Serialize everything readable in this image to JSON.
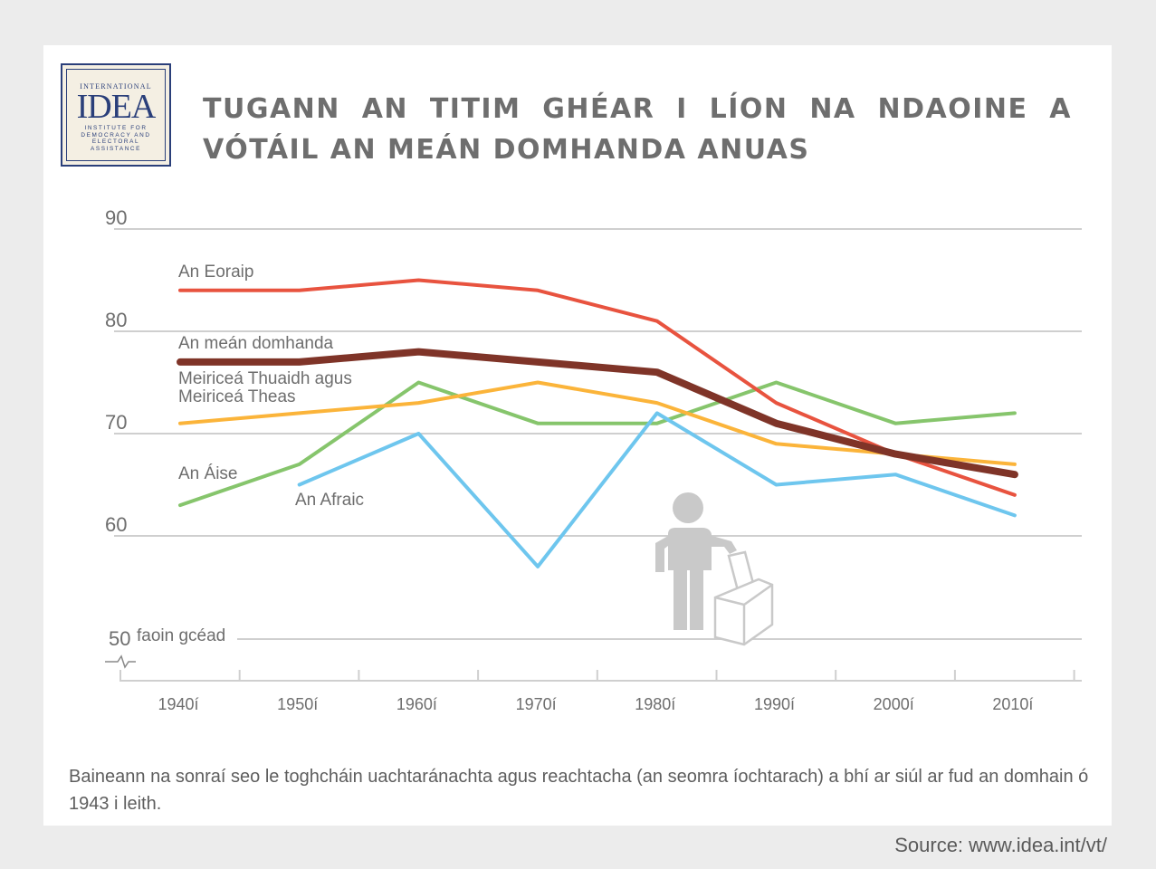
{
  "logo": {
    "top": "INTERNATIONAL",
    "main": "IDEA",
    "sub_lines": [
      "INSTITUTE FOR",
      "DEMOCRACY AND",
      "ELECTORAL",
      "ASSISTANCE"
    ]
  },
  "title": "TUGANN AN TITIM GHÉAR I LÍON NA NDAOINE A VÓTÁIL AN MEÁN DOMHANDA ANUAS",
  "note": "Baineann na sonraí seo le toghcháin uachtaránachta agus reachtacha (an seomra íochtarach) a bhí ar siúl ar fud an domhain ó 1943 i leith.",
  "source": "Source: www.idea.int/vt/",
  "colors": {
    "europe": "#e8533f",
    "world": "#7f3428",
    "americas": "#fbb43a",
    "asia": "#86c56c",
    "africa": "#6ec6ee",
    "grid": "#cfcfcf",
    "text": "#6e6e6e"
  },
  "icon": "voter-ballot-box-icon",
  "chart_data": {
    "type": "line",
    "categories": [
      "1940í",
      "1950í",
      "1960í",
      "1970í",
      "1980í",
      "1990í",
      "2000í",
      "2010í"
    ],
    "ylim": [
      50,
      90
    ],
    "yticks": [
      90,
      80,
      70,
      60,
      50
    ],
    "ylabel": "faoin gcéad",
    "grid": true,
    "series": [
      {
        "name": "An Eoraip",
        "color": "#e8533f",
        "values": [
          84,
          84,
          85,
          84,
          81,
          73,
          68,
          64
        ]
      },
      {
        "name": "An meán domhanda",
        "color": "#7f3428",
        "values": [
          77,
          77,
          78,
          77,
          76,
          71,
          68,
          66
        ]
      },
      {
        "name": "Meiriceá Thuaidh agus Meiriceá Theas",
        "color": "#fbb43a",
        "values": [
          71,
          72,
          73,
          75,
          73,
          69,
          68,
          67
        ]
      },
      {
        "name": "An Áise",
        "color": "#86c56c",
        "values": [
          63,
          67,
          75,
          71,
          71,
          75,
          71,
          72
        ]
      },
      {
        "name": "An Afraic",
        "color": "#6ec6ee",
        "values": [
          null,
          65,
          70,
          57,
          72,
          65,
          66,
          62
        ]
      }
    ]
  }
}
